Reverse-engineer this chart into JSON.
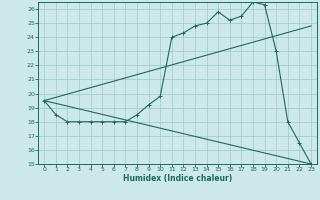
{
  "xlabel": "Humidex (Indice chaleur)",
  "bg_color": "#cce8e8",
  "grid_color": "#9ec8c8",
  "line_color": "#1a6b5a",
  "xlim": [
    -0.5,
    23.5
  ],
  "ylim": [
    15,
    26.5
  ],
  "yticks": [
    15,
    16,
    17,
    18,
    19,
    20,
    21,
    22,
    23,
    24,
    25,
    26
  ],
  "xticks": [
    0,
    1,
    2,
    3,
    4,
    5,
    6,
    7,
    8,
    9,
    10,
    11,
    12,
    13,
    14,
    15,
    16,
    17,
    18,
    19,
    20,
    21,
    22,
    23
  ],
  "series1_x": [
    0,
    1,
    2,
    3,
    4,
    5,
    6,
    7,
    8,
    9,
    10,
    11,
    12,
    13,
    14,
    15,
    16,
    17,
    18,
    19,
    20,
    21,
    22,
    23
  ],
  "series1_y": [
    19.5,
    18.5,
    18.0,
    18.0,
    18.0,
    18.0,
    18.0,
    18.0,
    18.5,
    19.2,
    19.8,
    24.0,
    24.3,
    24.8,
    25.0,
    25.8,
    25.2,
    25.5,
    26.5,
    26.3,
    23.0,
    18.0,
    16.5,
    15.0
  ],
  "series2_x": [
    0,
    23
  ],
  "series2_y": [
    19.5,
    24.8
  ],
  "series3_x": [
    0,
    23
  ],
  "series3_y": [
    19.5,
    15.0
  ]
}
